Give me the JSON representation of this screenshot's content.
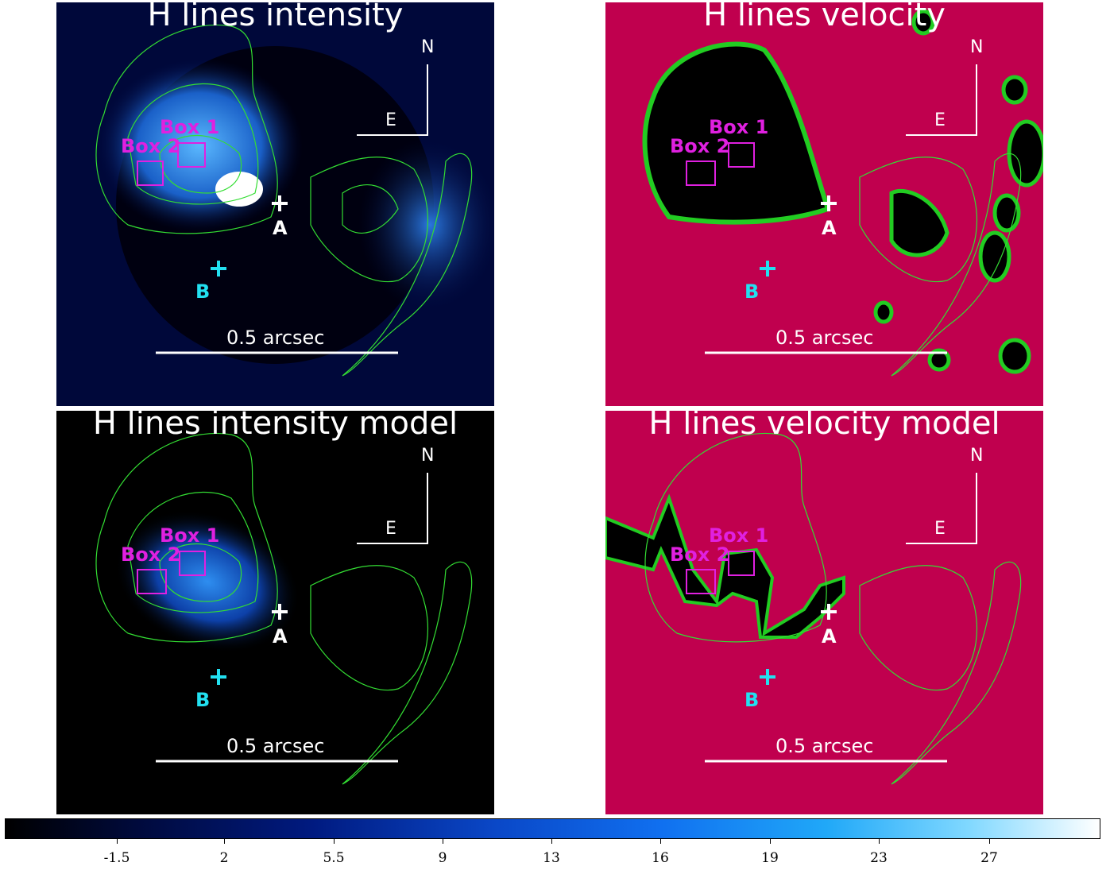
{
  "panels": [
    {
      "id": "intensity",
      "title": "H lines intensity",
      "bg": "#00083a"
    },
    {
      "id": "velocity",
      "title": "H lines velocity",
      "bg": "#c0004e"
    },
    {
      "id": "intensity_model",
      "title": "H lines intensity model",
      "bg": "#000000"
    },
    {
      "id": "velocity_model",
      "title": "H lines velocity model",
      "bg": "#c0004e"
    }
  ],
  "labels": {
    "box1": "Box 1",
    "box2": "Box 2",
    "star_a": "A",
    "star_b": "B",
    "north": "N",
    "east": "E",
    "scale_bar": "0.5 arcsec"
  },
  "colors": {
    "contour": "#33dd33",
    "box": "#e020e0",
    "star_a": "#ffffff",
    "star_b": "#22e0f0"
  },
  "colorbar": {
    "ticks": [
      "-1.5",
      "2",
      "5.5",
      "9",
      "13",
      "16",
      "19",
      "23",
      "27"
    ]
  }
}
